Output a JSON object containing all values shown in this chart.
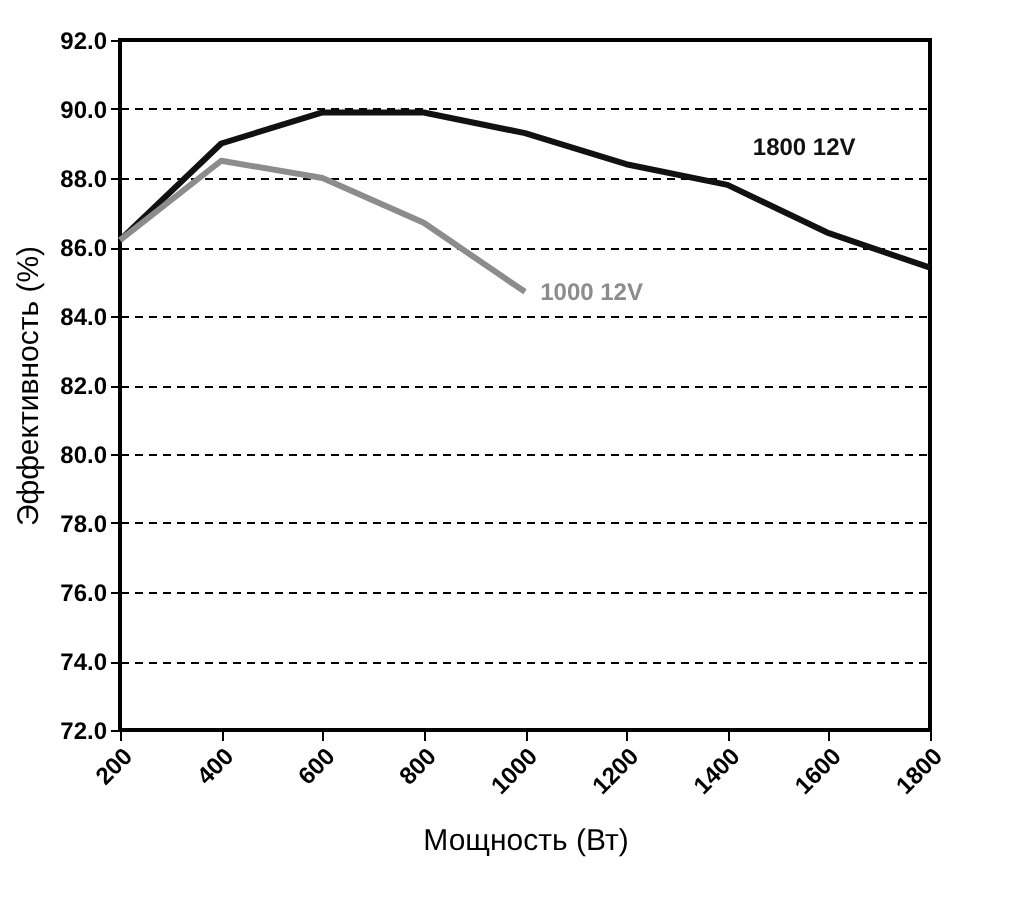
{
  "chart_data": {
    "type": "line",
    "xlabel": "Мощность (Вт)",
    "ylabel": "Эффективность (%)",
    "x": [
      200,
      400,
      600,
      800,
      1000,
      1200,
      1400,
      1600,
      1800
    ],
    "series": [
      {
        "name": "1800 12V",
        "color": "#111111",
        "values": [
          86.2,
          89.0,
          89.9,
          89.9,
          89.3,
          88.4,
          87.8,
          86.4,
          85.4
        ]
      },
      {
        "name": "1000 12V",
        "color": "#8c8c8c",
        "x": [
          200,
          400,
          600,
          800,
          1000
        ],
        "values": [
          86.2,
          88.5,
          88.0,
          86.7,
          84.7
        ]
      }
    ],
    "xlim": [
      200,
      1800
    ],
    "xticks": [
      200,
      400,
      600,
      800,
      1000,
      1200,
      1400,
      1600,
      1800
    ],
    "ylim": [
      72,
      92
    ],
    "yticks": [
      {
        "value": 72,
        "label": "72.0"
      },
      {
        "value": 74,
        "label": "74.0"
      },
      {
        "value": 76,
        "label": "76.0"
      },
      {
        "value": 78,
        "label": "78.0"
      },
      {
        "value": 80,
        "label": "80.0"
      },
      {
        "value": 82,
        "label": "82.0"
      },
      {
        "value": 84,
        "label": "84.0"
      },
      {
        "value": 86,
        "label": "86.0"
      },
      {
        "value": 88,
        "label": "88.0"
      },
      {
        "value": 90,
        "label": "90.0"
      },
      {
        "value": 92,
        "label": "92.0"
      }
    ],
    "grid": "y",
    "line_style": "solid",
    "legend": false
  }
}
